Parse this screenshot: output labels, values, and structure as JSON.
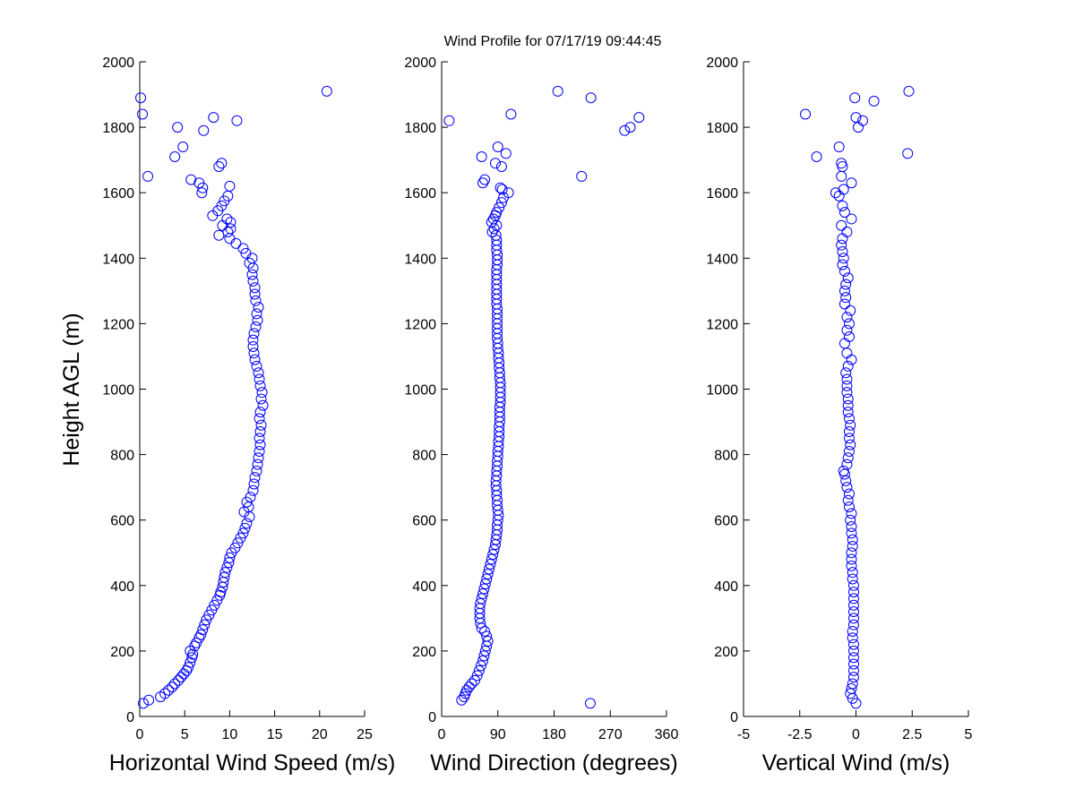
{
  "figure": {
    "title": "Wind Profile for  07/17/19 09:44:45",
    "ylabel": "Height AGL (m)",
    "marker_color": "#0000ff",
    "axis_color": "#000000",
    "background": "#ffffff"
  },
  "chart_data": [
    {
      "type": "scatter",
      "xlabel": "Horizontal Wind Speed (m/s)",
      "ylabel": "Height AGL (m)",
      "xlim": [
        0,
        25
      ],
      "ylim": [
        0,
        2000
      ],
      "xticks": [
        "0",
        "5",
        "10",
        "15",
        "20",
        "25"
      ],
      "yticks": [
        "0",
        "200",
        "400",
        "600",
        "800",
        "1000",
        "1200",
        "1400",
        "1600",
        "1800",
        "2000"
      ],
      "points": [
        [
          0.4,
          40
        ],
        [
          1.0,
          50
        ],
        [
          2.3,
          60
        ],
        [
          2.8,
          70
        ],
        [
          3.2,
          80
        ],
        [
          3.6,
          90
        ],
        [
          3.9,
          100
        ],
        [
          4.3,
          110
        ],
        [
          4.6,
          120
        ],
        [
          4.9,
          130
        ],
        [
          5.2,
          140
        ],
        [
          5.4,
          150
        ],
        [
          5.6,
          165
        ],
        [
          5.8,
          180
        ],
        [
          5.9,
          190
        ],
        [
          5.6,
          200
        ],
        [
          6.1,
          215
        ],
        [
          6.3,
          225
        ],
        [
          6.6,
          240
        ],
        [
          6.8,
          250
        ],
        [
          7.0,
          265
        ],
        [
          7.2,
          280
        ],
        [
          7.4,
          295
        ],
        [
          7.7,
          310
        ],
        [
          8.0,
          325
        ],
        [
          8.3,
          340
        ],
        [
          8.6,
          355
        ],
        [
          8.9,
          370
        ],
        [
          9.0,
          380
        ],
        [
          9.2,
          395
        ],
        [
          9.3,
          410
        ],
        [
          9.4,
          425
        ],
        [
          9.5,
          440
        ],
        [
          9.7,
          455
        ],
        [
          9.9,
          470
        ],
        [
          10.0,
          485
        ],
        [
          10.2,
          500
        ],
        [
          10.6,
          515
        ],
        [
          10.9,
          530
        ],
        [
          11.2,
          545
        ],
        [
          11.5,
          560
        ],
        [
          11.7,
          575
        ],
        [
          11.9,
          590
        ],
        [
          12.2,
          610
        ],
        [
          11.6,
          625
        ],
        [
          12.1,
          640
        ],
        [
          11.9,
          655
        ],
        [
          12.3,
          670
        ],
        [
          12.6,
          690
        ],
        [
          12.7,
          710
        ],
        [
          12.8,
          730
        ],
        [
          13.0,
          750
        ],
        [
          13.1,
          770
        ],
        [
          13.2,
          790
        ],
        [
          13.3,
          810
        ],
        [
          13.4,
          830
        ],
        [
          13.3,
          850
        ],
        [
          13.4,
          870
        ],
        [
          13.5,
          890
        ],
        [
          13.3,
          910
        ],
        [
          13.4,
          930
        ],
        [
          13.7,
          950
        ],
        [
          13.5,
          970
        ],
        [
          13.6,
          990
        ],
        [
          13.4,
          1010
        ],
        [
          13.3,
          1030
        ],
        [
          13.2,
          1050
        ],
        [
          13.0,
          1070
        ],
        [
          12.8,
          1090
        ],
        [
          12.7,
          1110
        ],
        [
          12.6,
          1130
        ],
        [
          12.6,
          1150
        ],
        [
          12.7,
          1170
        ],
        [
          12.9,
          1190
        ],
        [
          13.1,
          1210
        ],
        [
          13.0,
          1230
        ],
        [
          13.2,
          1250
        ],
        [
          12.9,
          1270
        ],
        [
          12.8,
          1290
        ],
        [
          12.8,
          1310
        ],
        [
          12.6,
          1330
        ],
        [
          12.5,
          1350
        ],
        [
          12.6,
          1370
        ],
        [
          12.2,
          1385
        ],
        [
          12.5,
          1400
        ],
        [
          11.8,
          1415
        ],
        [
          11.5,
          1430
        ],
        [
          10.7,
          1445
        ],
        [
          10.0,
          1460
        ],
        [
          8.8,
          1470
        ],
        [
          9.8,
          1480
        ],
        [
          10.1,
          1490
        ],
        [
          9.2,
          1500
        ],
        [
          10.1,
          1510
        ],
        [
          9.7,
          1520
        ],
        [
          8.1,
          1530
        ],
        [
          8.7,
          1545
        ],
        [
          9.1,
          1560
        ],
        [
          9.4,
          1575
        ],
        [
          9.8,
          1590
        ],
        [
          6.9,
          1600
        ],
        [
          7.0,
          1615
        ],
        [
          10.0,
          1620
        ],
        [
          6.6,
          1630
        ],
        [
          5.7,
          1640
        ],
        [
          0.9,
          1650
        ],
        [
          8.8,
          1680
        ],
        [
          9.1,
          1690
        ],
        [
          3.9,
          1710
        ],
        [
          4.8,
          1740
        ],
        [
          7.1,
          1790
        ],
        [
          4.2,
          1800
        ],
        [
          8.2,
          1830
        ],
        [
          10.8,
          1820
        ],
        [
          0.3,
          1840
        ],
        [
          0.1,
          1890
        ],
        [
          20.8,
          1910
        ]
      ]
    },
    {
      "type": "scatter",
      "xlabel": "Wind Direction (degrees)",
      "ylabel": "",
      "xlim": [
        0,
        360
      ],
      "ylim": [
        0,
        2000
      ],
      "xticks": [
        "0",
        "90",
        "180",
        "270",
        "360"
      ],
      "yticks": [
        "0",
        "200",
        "400",
        "600",
        "800",
        "1000",
        "1200",
        "1400",
        "1600",
        "1800",
        "2000"
      ],
      "points": [
        [
          238,
          40
        ],
        [
          32,
          50
        ],
        [
          36,
          60
        ],
        [
          38,
          70
        ],
        [
          40,
          80
        ],
        [
          44,
          90
        ],
        [
          48,
          100
        ],
        [
          53,
          110
        ],
        [
          57,
          125
        ],
        [
          60,
          140
        ],
        [
          63,
          155
        ],
        [
          66,
          170
        ],
        [
          68,
          185
        ],
        [
          70,
          200
        ],
        [
          72,
          215
        ],
        [
          74,
          230
        ],
        [
          72,
          245
        ],
        [
          69,
          260
        ],
        [
          64,
          270
        ],
        [
          62,
          285
        ],
        [
          61,
          300
        ],
        [
          61,
          315
        ],
        [
          61,
          330
        ],
        [
          62,
          345
        ],
        [
          64,
          360
        ],
        [
          66,
          375
        ],
        [
          68,
          390
        ],
        [
          70,
          405
        ],
        [
          72,
          420
        ],
        [
          74,
          435
        ],
        [
          76,
          450
        ],
        [
          78,
          465
        ],
        [
          80,
          480
        ],
        [
          82,
          495
        ],
        [
          84,
          510
        ],
        [
          86,
          525
        ],
        [
          87,
          540
        ],
        [
          88,
          555
        ],
        [
          89,
          570
        ],
        [
          89,
          585
        ],
        [
          90,
          600
        ],
        [
          91,
          615
        ],
        [
          90,
          630
        ],
        [
          89,
          645
        ],
        [
          89,
          660
        ],
        [
          88,
          675
        ],
        [
          88,
          690
        ],
        [
          87,
          705
        ],
        [
          87,
          720
        ],
        [
          88,
          735
        ],
        [
          88,
          750
        ],
        [
          89,
          765
        ],
        [
          89,
          780
        ],
        [
          90,
          795
        ],
        [
          90,
          810
        ],
        [
          91,
          825
        ],
        [
          91,
          840
        ],
        [
          92,
          855
        ],
        [
          92,
          870
        ],
        [
          92,
          885
        ],
        [
          93,
          900
        ],
        [
          93,
          915
        ],
        [
          93,
          930
        ],
        [
          93,
          945
        ],
        [
          94,
          960
        ],
        [
          94,
          975
        ],
        [
          94,
          990
        ],
        [
          94,
          1005
        ],
        [
          94,
          1020
        ],
        [
          93,
          1035
        ],
        [
          93,
          1050
        ],
        [
          92,
          1065
        ],
        [
          92,
          1080
        ],
        [
          91,
          1095
        ],
        [
          91,
          1110
        ],
        [
          90,
          1125
        ],
        [
          90,
          1140
        ],
        [
          89,
          1155
        ],
        [
          89,
          1170
        ],
        [
          89,
          1185
        ],
        [
          89,
          1200
        ],
        [
          89,
          1215
        ],
        [
          89,
          1230
        ],
        [
          89,
          1245
        ],
        [
          88,
          1260
        ],
        [
          88,
          1275
        ],
        [
          88,
          1290
        ],
        [
          88,
          1305
        ],
        [
          88,
          1320
        ],
        [
          88,
          1335
        ],
        [
          88,
          1350
        ],
        [
          88,
          1365
        ],
        [
          89,
          1380
        ],
        [
          89,
          1395
        ],
        [
          89,
          1410
        ],
        [
          88,
          1425
        ],
        [
          88,
          1440
        ],
        [
          88,
          1455
        ],
        [
          87,
          1470
        ],
        [
          81,
          1480
        ],
        [
          84,
          1490
        ],
        [
          88,
          1500
        ],
        [
          80,
          1510
        ],
        [
          83,
          1520
        ],
        [
          86,
          1530
        ],
        [
          88,
          1540
        ],
        [
          92,
          1555
        ],
        [
          96,
          1570
        ],
        [
          99,
          1585
        ],
        [
          107,
          1600
        ],
        [
          97,
          1610
        ],
        [
          94,
          1615
        ],
        [
          66,
          1630
        ],
        [
          69,
          1640
        ],
        [
          224,
          1650
        ],
        [
          96,
          1680
        ],
        [
          86,
          1690
        ],
        [
          64,
          1710
        ],
        [
          103,
          1720
        ],
        [
          90,
          1740
        ],
        [
          293,
          1790
        ],
        [
          302,
          1800
        ],
        [
          12,
          1820
        ],
        [
          316,
          1830
        ],
        [
          111,
          1840
        ],
        [
          239,
          1890
        ],
        [
          186,
          1910
        ]
      ]
    },
    {
      "type": "scatter",
      "xlabel": "Vertical Wind (m/s)",
      "ylabel": "",
      "xlim": [
        -5,
        5
      ],
      "ylim": [
        0,
        2000
      ],
      "xticks": [
        "-5",
        "-2.5",
        "0",
        "2.5",
        "5"
      ],
      "yticks": [
        "0",
        "200",
        "400",
        "600",
        "800",
        "1000",
        "1200",
        "1400",
        "1600",
        "1800",
        "2000"
      ],
      "points": [
        [
          0.0,
          40
        ],
        [
          -0.15,
          55
        ],
        [
          -0.25,
          70
        ],
        [
          -0.2,
          85
        ],
        [
          -0.15,
          100
        ],
        [
          -0.1,
          120
        ],
        [
          -0.1,
          140
        ],
        [
          -0.1,
          160
        ],
        [
          -0.1,
          180
        ],
        [
          -0.1,
          200
        ],
        [
          -0.1,
          220
        ],
        [
          -0.15,
          240
        ],
        [
          -0.15,
          260
        ],
        [
          -0.1,
          280
        ],
        [
          -0.1,
          300
        ],
        [
          -0.1,
          320
        ],
        [
          -0.1,
          340
        ],
        [
          -0.1,
          360
        ],
        [
          -0.1,
          380
        ],
        [
          -0.1,
          400
        ],
        [
          -0.15,
          420
        ],
        [
          -0.15,
          440
        ],
        [
          -0.2,
          460
        ],
        [
          -0.2,
          480
        ],
        [
          -0.2,
          500
        ],
        [
          -0.15,
          520
        ],
        [
          -0.15,
          540
        ],
        [
          -0.2,
          560
        ],
        [
          -0.2,
          580
        ],
        [
          -0.25,
          600
        ],
        [
          -0.2,
          620
        ],
        [
          -0.3,
          640
        ],
        [
          -0.35,
          660
        ],
        [
          -0.3,
          680
        ],
        [
          -0.4,
          700
        ],
        [
          -0.45,
          720
        ],
        [
          -0.5,
          740
        ],
        [
          -0.55,
          750
        ],
        [
          -0.4,
          770
        ],
        [
          -0.35,
          790
        ],
        [
          -0.3,
          810
        ],
        [
          -0.25,
          830
        ],
        [
          -0.3,
          850
        ],
        [
          -0.3,
          870
        ],
        [
          -0.25,
          890
        ],
        [
          -0.3,
          910
        ],
        [
          -0.35,
          930
        ],
        [
          -0.35,
          950
        ],
        [
          -0.35,
          970
        ],
        [
          -0.4,
          990
        ],
        [
          -0.4,
          1010
        ],
        [
          -0.4,
          1030
        ],
        [
          -0.45,
          1050
        ],
        [
          -0.35,
          1070
        ],
        [
          -0.2,
          1090
        ],
        [
          -0.4,
          1110
        ],
        [
          -0.5,
          1140
        ],
        [
          -0.3,
          1160
        ],
        [
          -0.4,
          1180
        ],
        [
          -0.3,
          1200
        ],
        [
          -0.4,
          1220
        ],
        [
          -0.25,
          1240
        ],
        [
          -0.5,
          1260
        ],
        [
          -0.45,
          1280
        ],
        [
          -0.5,
          1300
        ],
        [
          -0.45,
          1320
        ],
        [
          -0.35,
          1340
        ],
        [
          -0.5,
          1360
        ],
        [
          -0.6,
          1380
        ],
        [
          -0.55,
          1400
        ],
        [
          -0.6,
          1420
        ],
        [
          -0.65,
          1440
        ],
        [
          -0.6,
          1460
        ],
        [
          -0.4,
          1480
        ],
        [
          -0.65,
          1500
        ],
        [
          -0.2,
          1520
        ],
        [
          -0.5,
          1540
        ],
        [
          -0.6,
          1560
        ],
        [
          -0.75,
          1590
        ],
        [
          -0.9,
          1600
        ],
        [
          -0.55,
          1610
        ],
        [
          -0.2,
          1630
        ],
        [
          -0.65,
          1650
        ],
        [
          -0.6,
          1680
        ],
        [
          -0.65,
          1690
        ],
        [
          -1.75,
          1710
        ],
        [
          -0.75,
          1740
        ],
        [
          2.3,
          1720
        ],
        [
          -2.25,
          1840
        ],
        [
          0.0,
          1830
        ],
        [
          0.3,
          1820
        ],
        [
          0.1,
          1800
        ],
        [
          0.8,
          1880
        ],
        [
          2.35,
          1910
        ],
        [
          -0.05,
          1890
        ]
      ]
    }
  ]
}
